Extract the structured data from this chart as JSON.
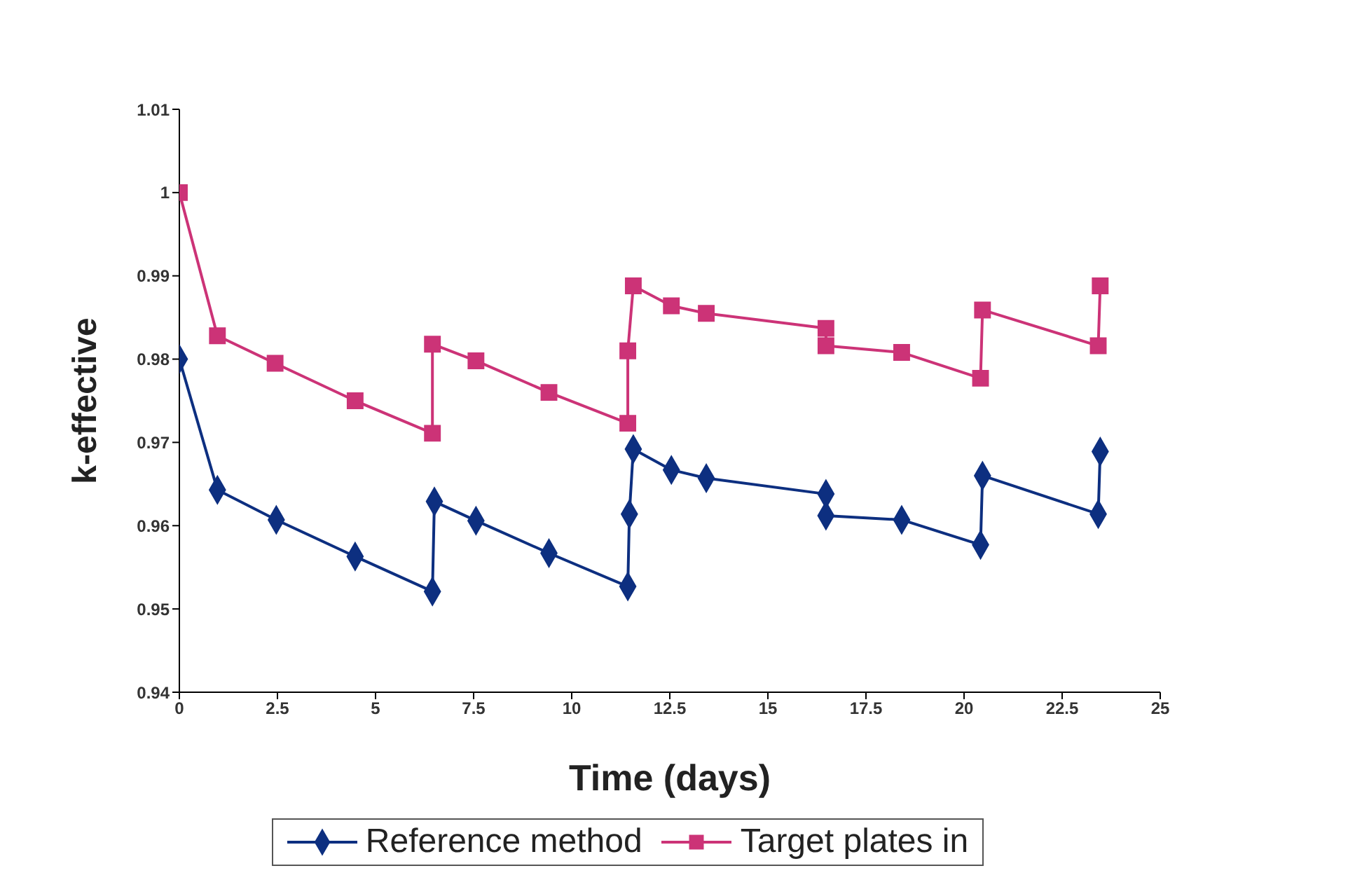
{
  "chart_data": {
    "type": "line",
    "xlabel": "Time (days)",
    "ylabel": "k-effective",
    "xlim": [
      0,
      25
    ],
    "xticks": [
      0,
      2.5,
      5,
      7.5,
      10,
      12.5,
      15,
      17.5,
      20,
      22.5,
      25
    ],
    "ylim": [
      0.94,
      1.01
    ],
    "yticks": [
      0.94,
      0.95,
      0.96,
      0.97,
      0.98,
      0.99,
      1,
      1.01
    ],
    "legend": "bottom",
    "line_style": "solid",
    "series": [
      {
        "name": "Reference method",
        "color": "#0d2f80",
        "marker": "diamond",
        "x": [
          0,
          0.97,
          2.47,
          4.48,
          6.45,
          6.5,
          7.56,
          9.42,
          11.43,
          11.47,
          11.57,
          12.54,
          13.43,
          16.48,
          16.48,
          18.41,
          20.42,
          20.47,
          23.42,
          23.47
        ],
        "values": [
          0.98,
          0.9643,
          0.9607,
          0.9563,
          0.9521,
          0.9629,
          0.9606,
          0.9567,
          0.9527,
          0.9614,
          0.9692,
          0.9667,
          0.9657,
          0.9638,
          0.9612,
          0.9607,
          0.9577,
          0.966,
          0.9614,
          0.9689
        ]
      },
      {
        "name": "Target plates in",
        "color": "#cc3377",
        "marker": "square",
        "x": [
          0,
          0.97,
          2.44,
          4.48,
          6.45,
          6.45,
          7.56,
          9.42,
          11.43,
          11.43,
          11.57,
          12.54,
          13.43,
          16.48,
          16.48,
          18.41,
          20.42,
          20.47,
          23.42,
          23.47
        ],
        "values": [
          1.0,
          0.9828,
          0.9795,
          0.975,
          0.9711,
          0.9818,
          0.9798,
          0.976,
          0.9723,
          0.981,
          0.9888,
          0.9864,
          0.9855,
          0.9837,
          0.9816,
          0.9808,
          0.9777,
          0.9859,
          0.9816,
          0.9888
        ]
      }
    ]
  }
}
